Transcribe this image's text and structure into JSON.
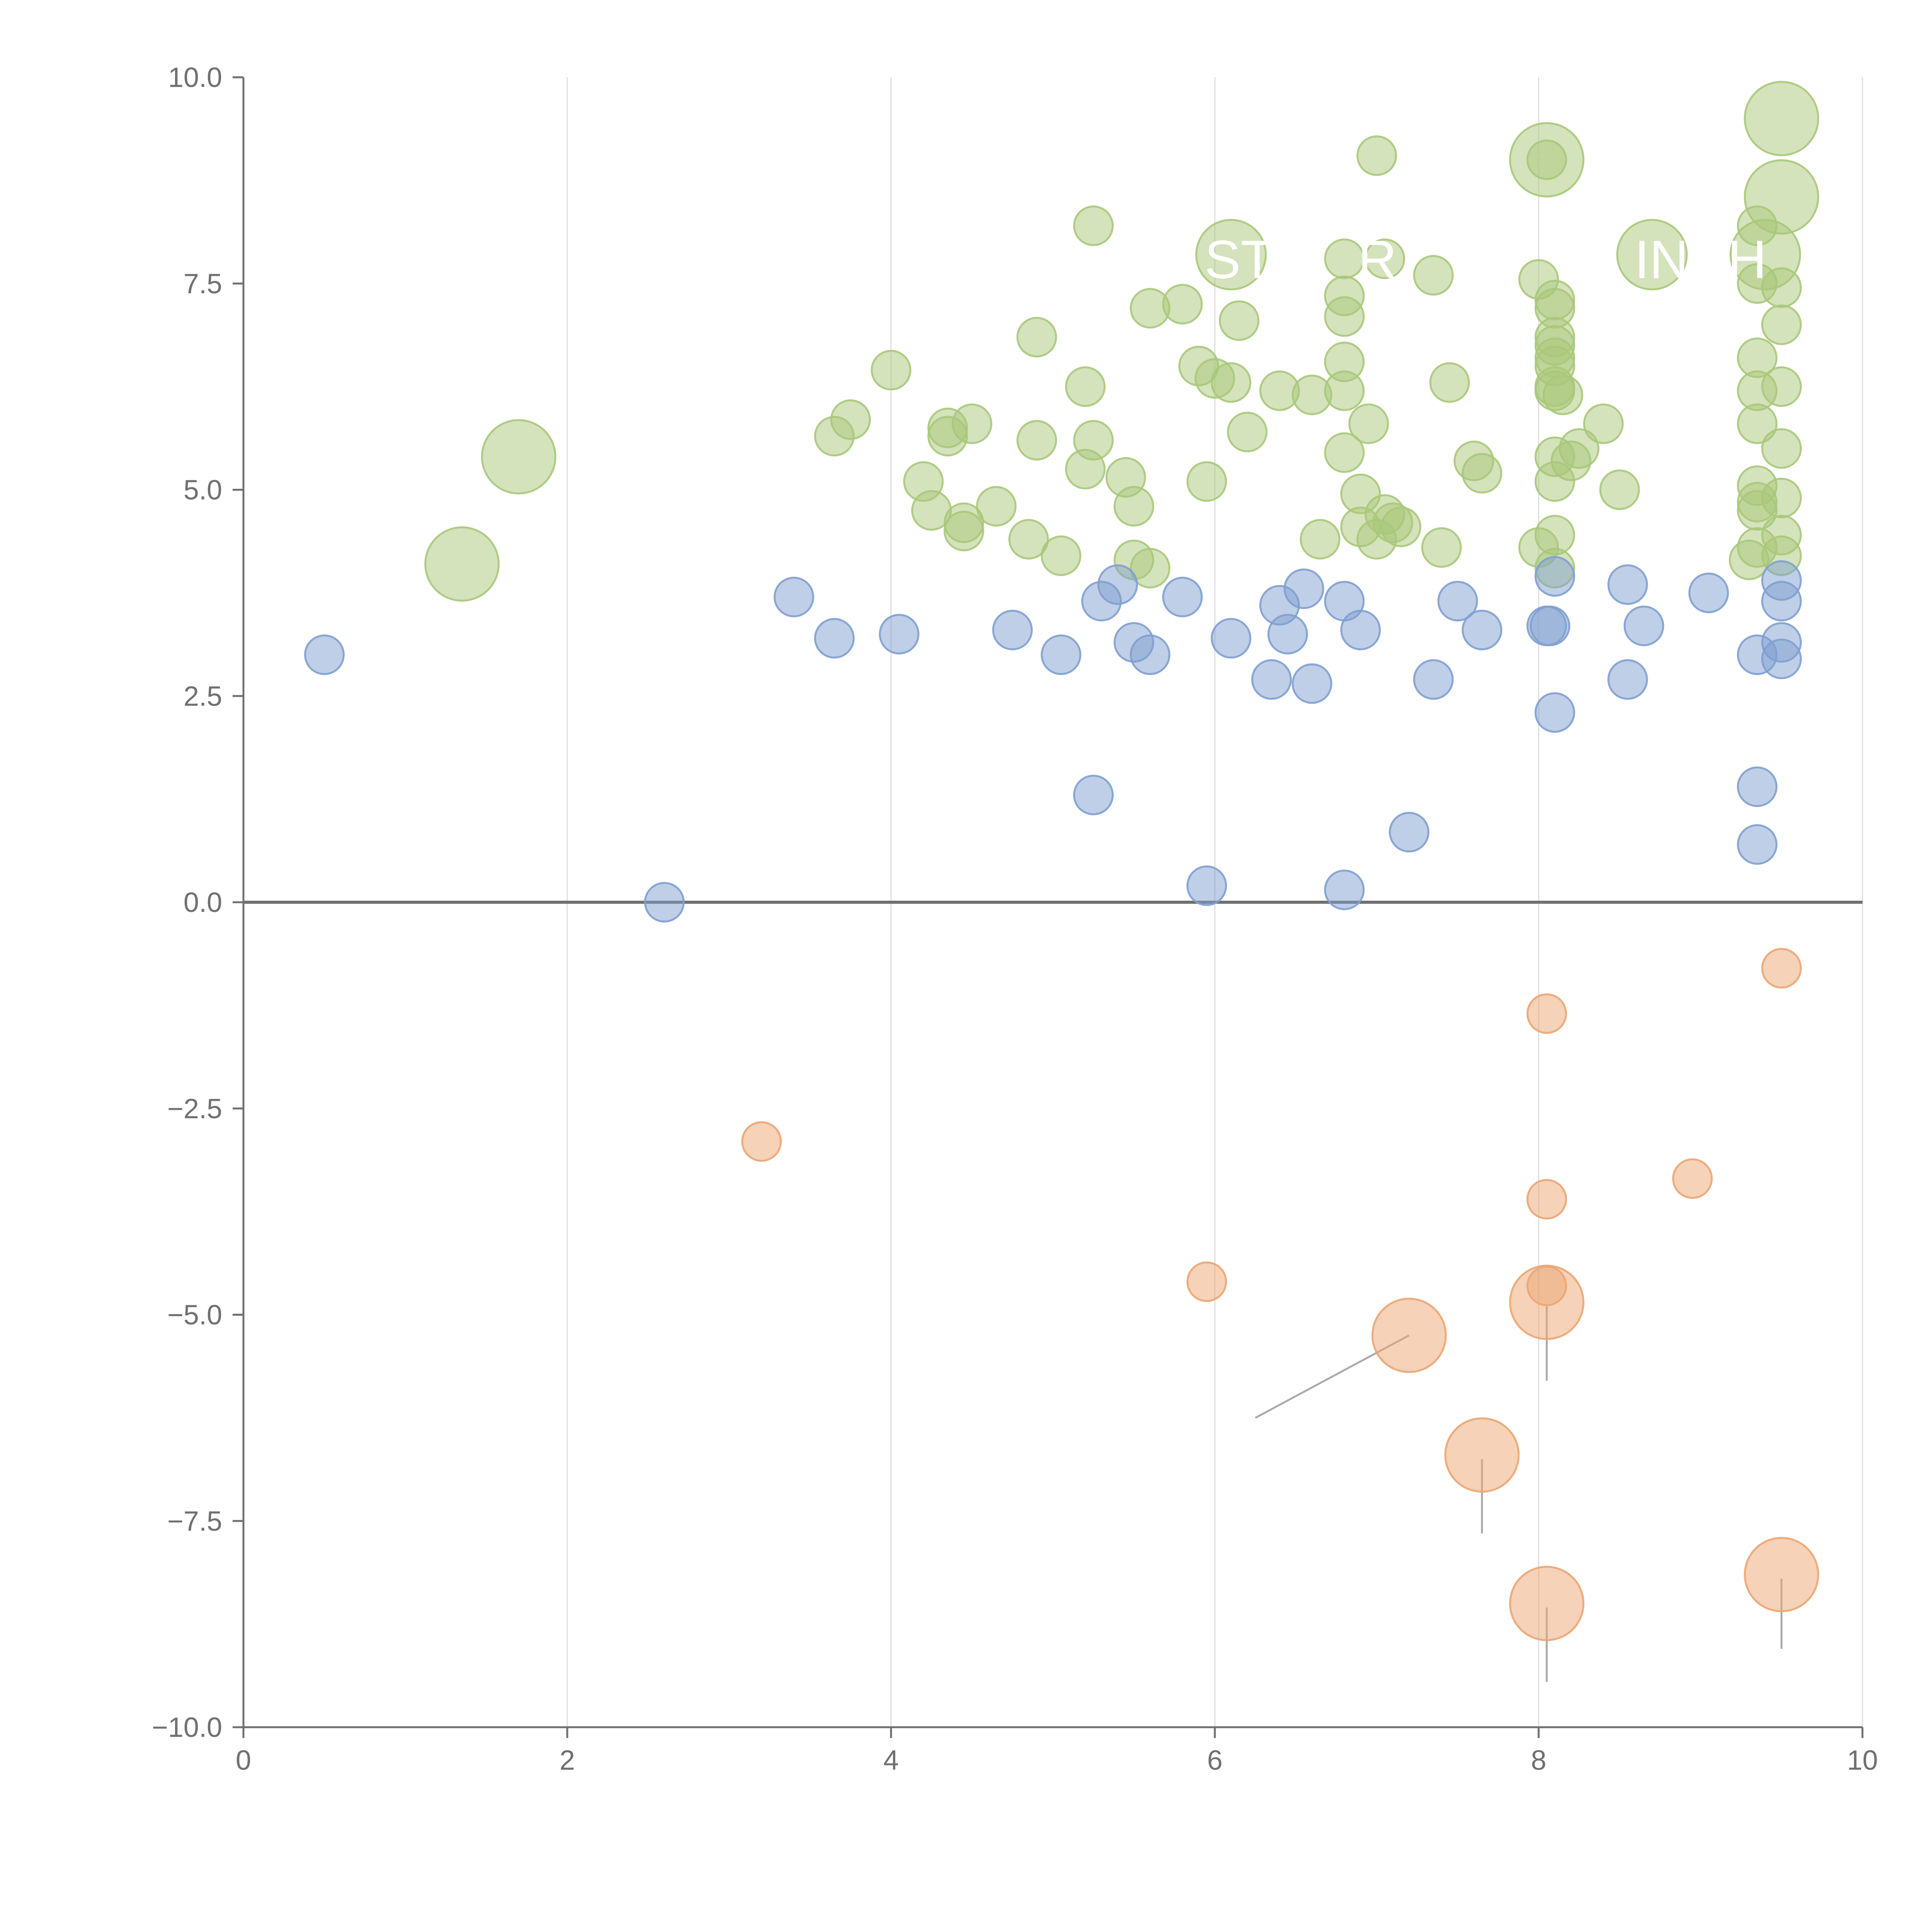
{
  "chart_data": {
    "type": "scatter",
    "title": "",
    "xlabel": "",
    "ylabel": "",
    "xlim": [
      0,
      10
    ],
    "ylim": [
      -10,
      10
    ],
    "x_ticks": [
      0,
      2,
      4,
      6,
      8,
      10
    ],
    "y_ticks": [
      -10,
      -7.5,
      -5,
      -2.5,
      0,
      2.5,
      5,
      7.5,
      10
    ],
    "x_tick_labels": [
      "0",
      "2",
      "4",
      "6",
      "8",
      "10"
    ],
    "y_tick_labels": [
      "−10.0",
      "−7.5",
      "−5.0",
      "−2.5",
      "0.0",
      "2.5",
      "5.0",
      "7.5",
      "10.0"
    ],
    "grid": "vertical",
    "zero_line": true,
    "colors": {
      "green": "#a9c87a",
      "blue": "#7f9fd0",
      "orange": "#eba572",
      "axis": "#707070",
      "grid": "#dddddd"
    },
    "series": [
      {
        "name": "green",
        "color": "#a9c87a",
        "points": [
          [
            1.35,
            4.1,
            3
          ],
          [
            1.7,
            5.4,
            3
          ],
          [
            3.65,
            5.65,
            1
          ],
          [
            3.75,
            5.85,
            1
          ],
          [
            4.0,
            6.45,
            1
          ],
          [
            4.2,
            5.1,
            1
          ],
          [
            4.25,
            4.75,
            1
          ],
          [
            4.35,
            5.75,
            1
          ],
          [
            4.35,
            5.65,
            1
          ],
          [
            4.45,
            4.6,
            1
          ],
          [
            4.45,
            4.5,
            1
          ],
          [
            4.5,
            5.8,
            1
          ],
          [
            4.65,
            4.8,
            1
          ],
          [
            4.85,
            4.4,
            1
          ],
          [
            4.9,
            5.6,
            1
          ],
          [
            4.9,
            6.85,
            1
          ],
          [
            5.05,
            4.2,
            1
          ],
          [
            5.2,
            5.25,
            1
          ],
          [
            5.2,
            6.25,
            1
          ],
          [
            5.25,
            5.6,
            1
          ],
          [
            5.25,
            8.2,
            1
          ],
          [
            5.45,
            5.15,
            1
          ],
          [
            5.5,
            4.8,
            1
          ],
          [
            5.5,
            4.15,
            1
          ],
          [
            5.6,
            7.2,
            1
          ],
          [
            5.6,
            4.05,
            1
          ],
          [
            5.8,
            7.25,
            1
          ],
          [
            5.9,
            6.5,
            1
          ],
          [
            5.95,
            5.1,
            1
          ],
          [
            6.0,
            6.35,
            1
          ],
          [
            6.1,
            6.3,
            1
          ],
          [
            6.1,
            7.85,
            2
          ],
          [
            6.15,
            7.05,
            1
          ],
          [
            6.2,
            5.7,
            1
          ],
          [
            6.4,
            6.2,
            1
          ],
          [
            6.6,
            6.15,
            1
          ],
          [
            6.65,
            4.4,
            1
          ],
          [
            6.8,
            7.8,
            1
          ],
          [
            6.8,
            7.35,
            1
          ],
          [
            6.8,
            7.1,
            1
          ],
          [
            6.8,
            6.55,
            1
          ],
          [
            6.8,
            6.2,
            1
          ],
          [
            6.8,
            5.45,
            1
          ],
          [
            6.9,
            4.95,
            1
          ],
          [
            6.9,
            4.55,
            1
          ],
          [
            6.95,
            5.8,
            1
          ],
          [
            7.0,
            4.4,
            1
          ],
          [
            7.0,
            9.05,
            1
          ],
          [
            7.05,
            4.7,
            1
          ],
          [
            7.05,
            7.8,
            1
          ],
          [
            7.1,
            4.6,
            1
          ],
          [
            7.15,
            4.55,
            1
          ],
          [
            7.35,
            7.6,
            1
          ],
          [
            7.4,
            4.3,
            1
          ],
          [
            7.45,
            6.3,
            1
          ],
          [
            7.6,
            5.35,
            1
          ],
          [
            7.65,
            5.2,
            1
          ],
          [
            8.0,
            7.55,
            1
          ],
          [
            8.0,
            4.3,
            1
          ],
          [
            8.05,
            9.0,
            1
          ],
          [
            8.05,
            9.0,
            3
          ],
          [
            8.1,
            7.3,
            1
          ],
          [
            8.1,
            7.2,
            1
          ],
          [
            8.1,
            6.85,
            1
          ],
          [
            8.1,
            6.75,
            1
          ],
          [
            8.1,
            6.6,
            1
          ],
          [
            8.1,
            6.5,
            1
          ],
          [
            8.1,
            6.25,
            1
          ],
          [
            8.1,
            6.2,
            1
          ],
          [
            8.1,
            5.4,
            1
          ],
          [
            8.1,
            5.1,
            1
          ],
          [
            8.1,
            4.45,
            1
          ],
          [
            8.1,
            4.05,
            1
          ],
          [
            8.15,
            6.15,
            1
          ],
          [
            8.2,
            5.35,
            1
          ],
          [
            8.25,
            5.5,
            1
          ],
          [
            8.4,
            5.8,
            1
          ],
          [
            8.5,
            5.0,
            1
          ],
          [
            8.7,
            7.85,
            2
          ],
          [
            9.3,
            4.15,
            1
          ],
          [
            9.35,
            8.2,
            1
          ],
          [
            9.35,
            7.5,
            1
          ],
          [
            9.35,
            6.6,
            1
          ],
          [
            9.35,
            6.2,
            1
          ],
          [
            9.35,
            5.8,
            1
          ],
          [
            9.35,
            5.05,
            1
          ],
          [
            9.35,
            4.85,
            1
          ],
          [
            9.35,
            4.75,
            1
          ],
          [
            9.35,
            4.3,
            1
          ],
          [
            9.4,
            7.85,
            2
          ],
          [
            9.5,
            9.5,
            3
          ],
          [
            9.5,
            8.55,
            3
          ],
          [
            9.5,
            7.45,
            1
          ],
          [
            9.5,
            7.0,
            1
          ],
          [
            9.5,
            6.25,
            1
          ],
          [
            9.5,
            5.5,
            1
          ],
          [
            9.5,
            4.9,
            1
          ],
          [
            9.5,
            4.45,
            1
          ],
          [
            9.5,
            4.2,
            1
          ]
        ]
      },
      {
        "name": "blue",
        "color": "#7f9fd0",
        "points": [
          [
            0.5,
            3.0,
            1
          ],
          [
            2.6,
            0.0,
            1
          ],
          [
            3.4,
            3.7,
            1
          ],
          [
            3.65,
            3.2,
            1
          ],
          [
            4.05,
            3.25,
            1
          ],
          [
            4.75,
            3.3,
            1
          ],
          [
            5.05,
            3.0,
            1
          ],
          [
            5.25,
            1.3,
            1
          ],
          [
            5.3,
            3.65,
            1
          ],
          [
            5.4,
            3.85,
            1
          ],
          [
            5.5,
            3.15,
            1
          ],
          [
            5.6,
            3.0,
            1
          ],
          [
            5.8,
            3.7,
            1
          ],
          [
            5.95,
            0.2,
            1
          ],
          [
            6.1,
            3.2,
            1
          ],
          [
            6.35,
            2.7,
            1
          ],
          [
            6.4,
            3.6,
            1
          ],
          [
            6.45,
            3.25,
            1
          ],
          [
            6.55,
            3.8,
            1
          ],
          [
            6.6,
            2.65,
            1
          ],
          [
            6.8,
            3.65,
            1
          ],
          [
            6.8,
            0.15,
            1
          ],
          [
            6.9,
            3.3,
            1
          ],
          [
            7.2,
            0.85,
            1
          ],
          [
            7.35,
            2.7,
            1
          ],
          [
            7.5,
            3.65,
            1
          ],
          [
            7.65,
            3.3,
            1
          ],
          [
            8.05,
            3.35,
            1
          ],
          [
            8.07,
            3.35,
            1
          ],
          [
            8.1,
            3.95,
            1
          ],
          [
            8.1,
            2.3,
            1
          ],
          [
            8.55,
            2.7,
            1
          ],
          [
            8.55,
            3.85,
            1
          ],
          [
            8.65,
            3.35,
            1
          ],
          [
            9.05,
            3.75,
            1
          ],
          [
            9.35,
            3.0,
            1
          ],
          [
            9.35,
            1.4,
            1
          ],
          [
            9.35,
            0.7,
            1
          ],
          [
            9.5,
            3.9,
            1
          ],
          [
            9.5,
            3.65,
            1
          ],
          [
            9.5,
            3.15,
            1
          ],
          [
            9.5,
            2.95,
            1
          ]
        ]
      },
      {
        "name": "orange",
        "color": "#eba572",
        "points": [
          [
            3.2,
            -2.9,
            1
          ],
          [
            5.95,
            -4.6,
            1
          ],
          [
            7.2,
            -5.25,
            3
          ],
          [
            7.65,
            -6.7,
            3
          ],
          [
            8.05,
            -1.35,
            1
          ],
          [
            8.05,
            -3.6,
            1
          ],
          [
            8.05,
            -4.65,
            1
          ],
          [
            8.05,
            -4.85,
            3
          ],
          [
            8.05,
            -8.5,
            3
          ],
          [
            8.95,
            -3.35,
            1
          ],
          [
            9.5,
            -0.8,
            1
          ],
          [
            9.5,
            -8.15,
            3
          ]
        ]
      }
    ],
    "leader_lines": [
      {
        "color": "#aaaaaa",
        "from": [
          7.2,
          -5.25
        ],
        "to": [
          6.25,
          -6.25
        ]
      },
      {
        "color": "#aaaaaa",
        "from": [
          7.65,
          -6.75
        ],
        "to": [
          7.65,
          -7.65
        ]
      },
      {
        "color": "#aaaaaa",
        "from": [
          8.05,
          -4.9
        ],
        "to": [
          8.05,
          -5.8
        ]
      },
      {
        "color": "#aaaaaa",
        "from": [
          8.05,
          -8.55
        ],
        "to": [
          8.05,
          -9.45
        ]
      },
      {
        "color": "#aaaaaa",
        "from": [
          9.5,
          -8.2
        ],
        "to": [
          9.5,
          -9.05
        ]
      },
      {
        "color": "#ffffff",
        "from": [
          1.35,
          4.1
        ],
        "to": [
          1.6,
          4.2
        ]
      },
      {
        "color": "#ffffff",
        "from": [
          8.05,
          9.0
        ],
        "to": [
          7.85,
          9.15
        ]
      },
      {
        "color": "#ffffff",
        "from": [
          9.5,
          9.5
        ],
        "to": [
          9.3,
          9.55
        ]
      },
      {
        "color": "#ffffff",
        "from": [
          9.5,
          8.55
        ],
        "to": [
          9.35,
          8.75
        ]
      }
    ],
    "annotations": [
      {
        "text": "ST",
        "x": 6.15,
        "y": 7.8,
        "anchor": "middle"
      },
      {
        "text": "R.",
        "x": 7.05,
        "y": 7.8,
        "anchor": "middle"
      },
      {
        "text": "INCH",
        "x": 9.0,
        "y": 7.8,
        "anchor": "middle"
      }
    ]
  }
}
